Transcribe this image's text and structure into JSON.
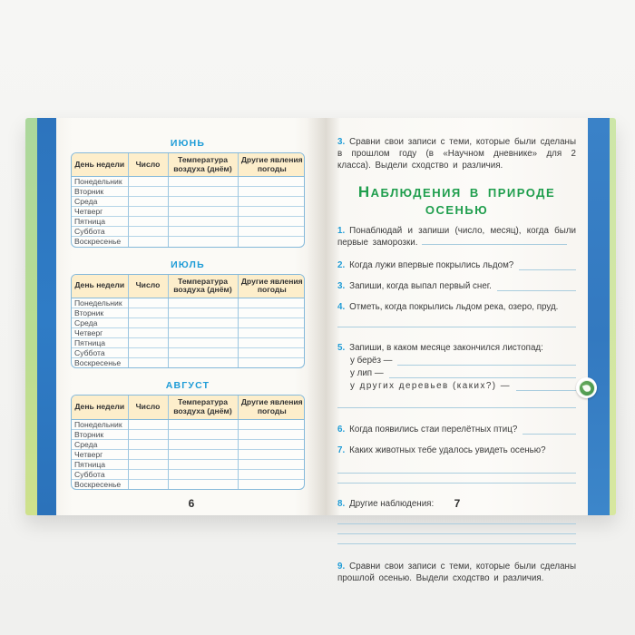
{
  "book": {
    "left_page": {
      "page_number": "6",
      "months": [
        {
          "title": "ИЮНЬ"
        },
        {
          "title": "ИЮЛЬ"
        },
        {
          "title": "АВГУСТ"
        }
      ],
      "table": {
        "headers": [
          "День недели",
          "Число",
          "Температура воздуха (днём)",
          "Другие явления погоды"
        ],
        "days": [
          "Понедельник",
          "Вторник",
          "Среда",
          "Четверг",
          "Пятница",
          "Суббота",
          "Воскресенье"
        ]
      }
    },
    "right_page": {
      "page_number": "7",
      "task3": {
        "num": "3.",
        "text": "Сравни свои записи с теми, которые были сделаны в прошлом году (в «Научном дневнике» для 2 класса). Выдели сходство и различия."
      },
      "heading": "Наблюдения в природе осенью",
      "q1": {
        "num": "1.",
        "text": "Понаблюдай и запиши (число, месяц), когда были первые заморозки."
      },
      "q2": {
        "num": "2.",
        "text": "Когда лужи впервые покрылись льдом?"
      },
      "q3": {
        "num": "3.",
        "text": "Запиши, когда выпал первый снег."
      },
      "q4": {
        "num": "4.",
        "text": "Отметь, когда покрылись льдом река, озеро, пруд."
      },
      "q5": {
        "num": "5.",
        "text": "Запиши, в каком месяце закончился листопад:",
        "sub1": "у берёз —",
        "sub2": "у лип —",
        "sub3": "у других деревьев (каких?) —"
      },
      "q6": {
        "num": "6.",
        "text": "Когда появились стаи перелётных птиц?"
      },
      "q7": {
        "num": "7.",
        "text": "Каких животных тебе удалось увидеть осенью?"
      },
      "q8": {
        "num": "8.",
        "text": "Другие наблюдения:"
      },
      "q9": {
        "num": "9.",
        "text": "Сравни свои записи с теми, которые были сделаны прошлой осенью. Выдели сходство и различия."
      }
    },
    "badge_icon": "leaf-icon",
    "colors": {
      "accent_blue": "#1e9cd7",
      "heading_green": "#1f9e4d",
      "cover_blue": "#2f7cc6",
      "cover_green": "#b9dc92",
      "table_header_bg": "#fdeecb",
      "table_border": "#85b9da",
      "write_line": "#aacdde"
    }
  }
}
